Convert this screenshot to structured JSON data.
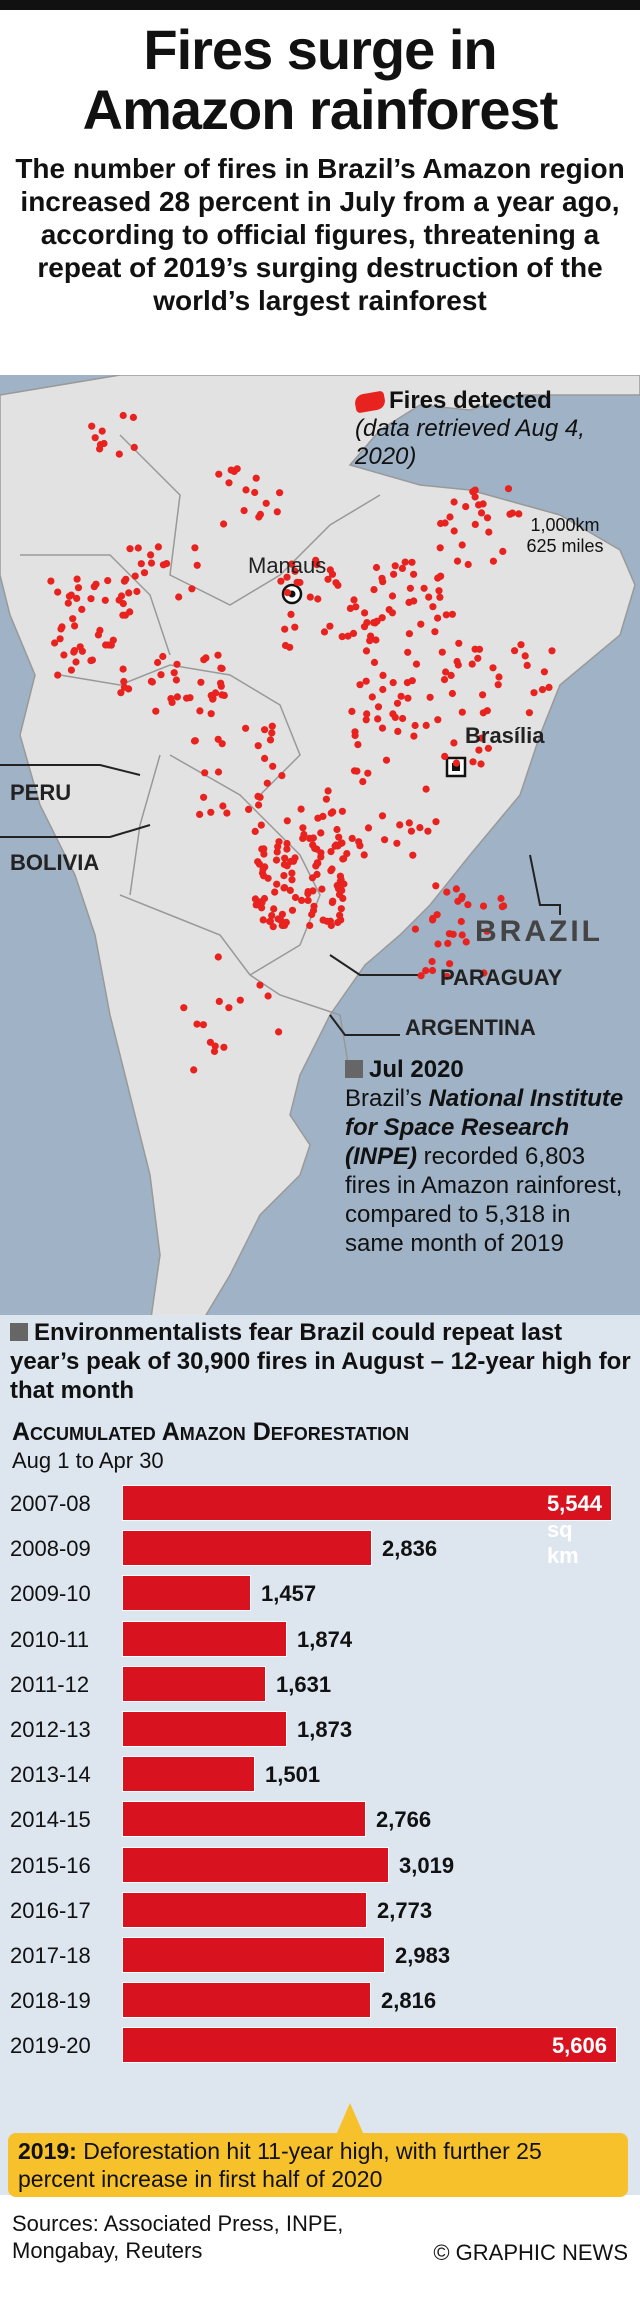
{
  "header": {
    "title_line1": "Fires surge in",
    "title_line2": "Amazon rainforest",
    "subtitle": "The number of fires in Brazil’s Amazon region increased 28 percent in July from a year ago, according to official figures, threatening a repeat of 2019’s surging destruction of the world’s largest rainforest"
  },
  "map": {
    "legend_title": "Fires detected",
    "legend_note": "(data retrieved Aug 4, 2020)",
    "scale_km": "1,000km",
    "scale_miles": "625 miles",
    "labels": {
      "manaus": "Manaus",
      "brasilia": "Brasília",
      "peru": "PERU",
      "bolivia": "BOLIVIA",
      "brazil": "BRAZIL",
      "paraguay": "PARAGUAY",
      "argentina": "ARGENTINA"
    },
    "colors": {
      "fire": "#e8231f",
      "land": "#e2e2e2",
      "water": "#9fb2c6",
      "border": "#888888"
    }
  },
  "callout": {
    "heading": "Jul 2020",
    "text_pre": "Brazil’s ",
    "text_em": "National Institute for Space Research (INPE)",
    "text_post": " recorded 6,803 fires in Amazon rainforest, compared to 5,318 in same month of 2019"
  },
  "environment_note": "Environmentalists fear Brazil could repeat last year’s peak of 30,900 fires in August – 12-year high for that month",
  "chart_data": {
    "type": "bar",
    "orientation": "horizontal",
    "title": "Accumulated Amazon Deforestation",
    "subtitle": "Aug 1 to Apr 30",
    "unit": "sq km",
    "categories": [
      "2007-08",
      "2008-09",
      "2009-10",
      "2010-11",
      "2011-12",
      "2012-13",
      "2013-14",
      "2014-15",
      "2015-16",
      "2016-17",
      "2017-18",
      "2018-19",
      "2019-20"
    ],
    "values": [
      5544,
      2836,
      1457,
      1874,
      1631,
      1873,
      1501,
      2766,
      3019,
      2773,
      2983,
      2816,
      5606
    ],
    "value_labels": [
      "5,544 sq km",
      "2,836",
      "1,457",
      "1,874",
      "1,631",
      "1,873",
      "1,501",
      "2,766",
      "3,019",
      "2,773",
      "2,983",
      "2,816",
      "5,606"
    ],
    "xlim": [
      0,
      5606
    ],
    "bar_color": "#d8121e"
  },
  "note": {
    "bold": "2019:",
    "text": " Deforestation hit 11-year high, with further 25 percent increase in first half of 2020"
  },
  "footer": {
    "sources": "Sources: Associated Press, INPE, Mongabay, Reuters",
    "credit": "© GRAPHIC NEWS"
  }
}
